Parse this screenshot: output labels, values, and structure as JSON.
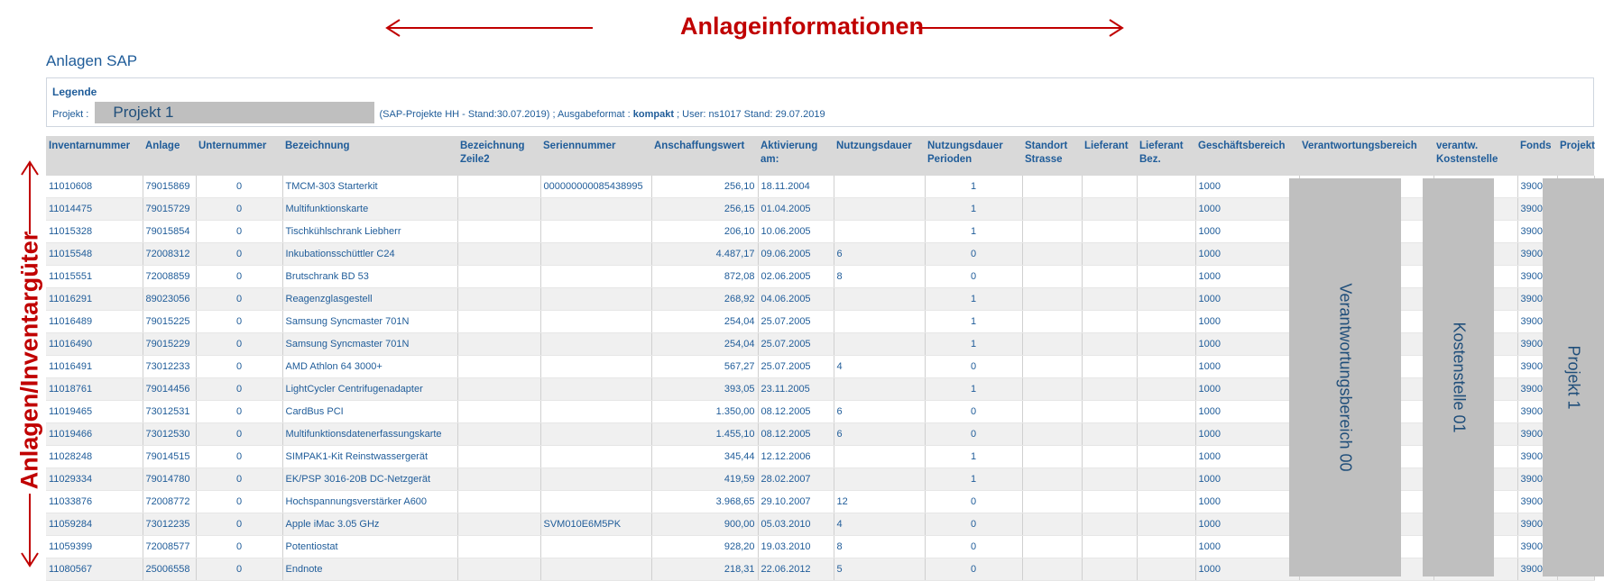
{
  "annotations": {
    "title": "Anlageinformationen",
    "vertical_label": "Anlagen/Inventargüter"
  },
  "page_title": "Anlagen SAP",
  "legend": {
    "title": "Legende",
    "project_label": "Projekt :",
    "project_value": "Projekt 1",
    "info_pre": "(SAP-Projekte HH - Stand:30.07.2019) ; Ausgabeformat :",
    "format": "kompakt",
    "info_post": "; User: ns1017   Stand: 29.07.2019"
  },
  "columns": [
    "Inventarnummer",
    "Anlage",
    "Unternummer",
    "Bezeichnung",
    "Bezeichnung Zeile2",
    "Seriennummer",
    "Anschaffungswert",
    "Aktivierung am:",
    "Nutzungsdauer",
    "Nutzungsdauer Perioden",
    "Standort Strasse",
    "Lieferant",
    "Lieferant Bez.",
    "Geschäftsbereich",
    "Verantwortungsbereich",
    "verantw. Kostenstelle",
    "Fonds",
    "Projekt"
  ],
  "rows": [
    {
      "inv": "11010608",
      "anlage": "79015869",
      "unter": "0",
      "bez": "TMCM-303 Starterkit",
      "serial": "000000000085438995",
      "wert": "256,10",
      "akt": "18.11.2004",
      "nd": "",
      "ndp": "1",
      "gb": "1000",
      "fonds": "3900"
    },
    {
      "inv": "11014475",
      "anlage": "79015729",
      "unter": "0",
      "bez": "Multifunktionskarte",
      "serial": "",
      "wert": "256,15",
      "akt": "01.04.2005",
      "nd": "",
      "ndp": "1",
      "gb": "1000",
      "fonds": "3900"
    },
    {
      "inv": "11015328",
      "anlage": "79015854",
      "unter": "0",
      "bez": "Tischkühlschrank Liebherr",
      "serial": "",
      "wert": "206,10",
      "akt": "10.06.2005",
      "nd": "",
      "ndp": "1",
      "gb": "1000",
      "fonds": "3900"
    },
    {
      "inv": "11015548",
      "anlage": "72008312",
      "unter": "0",
      "bez": "Inkubationsschüttler C24",
      "serial": "",
      "wert": "4.487,17",
      "akt": "09.06.2005",
      "nd": "6",
      "ndp": "0",
      "gb": "1000",
      "fonds": "3900"
    },
    {
      "inv": "11015551",
      "anlage": "72008859",
      "unter": "0",
      "bez": "Brutschrank BD 53",
      "serial": "",
      "wert": "872,08",
      "akt": "02.06.2005",
      "nd": "8",
      "ndp": "0",
      "gb": "1000",
      "fonds": "3900"
    },
    {
      "inv": "11016291",
      "anlage": "89023056",
      "unter": "0",
      "bez": "Reagenzglasgestell",
      "serial": "",
      "wert": "268,92",
      "akt": "04.06.2005",
      "nd": "",
      "ndp": "1",
      "gb": "1000",
      "fonds": "3900"
    },
    {
      "inv": "11016489",
      "anlage": "79015225",
      "unter": "0",
      "bez": "Samsung Syncmaster 701N",
      "serial": "",
      "wert": "254,04",
      "akt": "25.07.2005",
      "nd": "",
      "ndp": "1",
      "gb": "1000",
      "fonds": "3900"
    },
    {
      "inv": "11016490",
      "anlage": "79015229",
      "unter": "0",
      "bez": "Samsung Syncmaster 701N",
      "serial": "",
      "wert": "254,04",
      "akt": "25.07.2005",
      "nd": "",
      "ndp": "1",
      "gb": "1000",
      "fonds": "3900"
    },
    {
      "inv": "11016491",
      "anlage": "73012233",
      "unter": "0",
      "bez": "AMD Athlon 64 3000+",
      "serial": "",
      "wert": "567,27",
      "akt": "25.07.2005",
      "nd": "4",
      "ndp": "0",
      "gb": "1000",
      "fonds": "3900"
    },
    {
      "inv": "11018761",
      "anlage": "79014456",
      "unter": "0",
      "bez": "LightCycler Centrifugenadapter",
      "serial": "",
      "wert": "393,05",
      "akt": "23.11.2005",
      "nd": "",
      "ndp": "1",
      "gb": "1000",
      "fonds": "3900"
    },
    {
      "inv": "11019465",
      "anlage": "73012531",
      "unter": "0",
      "bez": "CardBus PCI",
      "serial": "",
      "wert": "1.350,00",
      "akt": "08.12.2005",
      "nd": "6",
      "ndp": "0",
      "gb": "1000",
      "fonds": "3900"
    },
    {
      "inv": "11019466",
      "anlage": "73012530",
      "unter": "0",
      "bez": "Multifunktionsdatenerfassungskarte",
      "serial": "",
      "wert": "1.455,10",
      "akt": "08.12.2005",
      "nd": "6",
      "ndp": "0",
      "gb": "1000",
      "fonds": "3900"
    },
    {
      "inv": "11028248",
      "anlage": "79014515",
      "unter": "0",
      "bez": "SIMPAK1-Kit Reinstwassergerät",
      "serial": "",
      "wert": "345,44",
      "akt": "12.12.2006",
      "nd": "",
      "ndp": "1",
      "gb": "1000",
      "fonds": "3900"
    },
    {
      "inv": "11029334",
      "anlage": "79014780",
      "unter": "0",
      "bez": "EK/PSP 3016-20B DC-Netzgerät",
      "serial": "",
      "wert": "419,59",
      "akt": "28.02.2007",
      "nd": "",
      "ndp": "1",
      "gb": "1000",
      "fonds": "3900"
    },
    {
      "inv": "11033876",
      "anlage": "72008772",
      "unter": "0",
      "bez": "Hochspannungsverstärker A600",
      "serial": "",
      "wert": "3.968,65",
      "akt": "29.10.2007",
      "nd": "12",
      "ndp": "0",
      "gb": "1000",
      "fonds": "3900"
    },
    {
      "inv": "11059284",
      "anlage": "73012235",
      "unter": "0",
      "bez": "Apple iMac 3.05 GHz",
      "serial": "SVM010E6M5PK",
      "wert": "900,00",
      "akt": "05.03.2010",
      "nd": "4",
      "ndp": "0",
      "gb": "1000",
      "fonds": "3900"
    },
    {
      "inv": "11059399",
      "anlage": "72008577",
      "unter": "0",
      "bez": "Potentiostat",
      "serial": "",
      "wert": "928,20",
      "akt": "19.03.2010",
      "nd": "8",
      "ndp": "0",
      "gb": "1000",
      "fonds": "3900"
    },
    {
      "inv": "11080567",
      "anlage": "25006558",
      "unter": "0",
      "bez": "Endnote",
      "serial": "",
      "wert": "218,31",
      "akt": "22.06.2012",
      "nd": "5",
      "ndp": "0",
      "gb": "1000",
      "fonds": "3900"
    }
  ],
  "merged_labels": {
    "verantwortungsbereich": "Verantwortungsbereich 00",
    "kostenstelle": "Kostenstelle 01",
    "projekt": "Projekt 1"
  },
  "colors": {
    "annotation_red": "#c00000",
    "text_blue": "#1f5c99",
    "header_gray": "#d9d9d9",
    "overlay_gray": "#bfbfbf"
  }
}
